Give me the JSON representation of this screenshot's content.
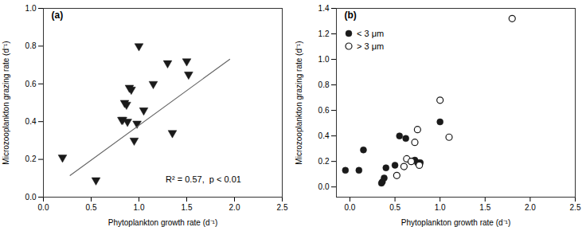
{
  "chart_data": [
    {
      "type": "scatter",
      "title": "(a)",
      "x_label": "Phytoplankton growth rate (d⁻¹)",
      "y_label": "Microzooplankton grazing rate (d⁻¹)",
      "xlim": [
        0.0,
        2.5
      ],
      "ylim": [
        0.0,
        1.0
      ],
      "xticks": [
        {
          "value": 0.0,
          "label": "0.0"
        },
        0.5,
        {
          "value": 1.0,
          "label": "1.0"
        },
        1.5,
        {
          "value": 2.0,
          "label": "2.0"
        },
        2.5
      ],
      "yticks": [
        {
          "value": 0.0,
          "label": "0.0"
        },
        0.2,
        0.4,
        0.6,
        0.8,
        {
          "value": 1.0,
          "label": "1.0"
        }
      ],
      "series": [
        {
          "type": "scatter",
          "marker": "triangle_down",
          "color": "#1a1a1a",
          "x": [
            0.2,
            0.55,
            0.82,
            0.83,
            0.85,
            0.87,
            0.88,
            0.9,
            0.92,
            0.95,
            0.98,
            1.0,
            1.05,
            1.15,
            1.3,
            1.35,
            1.5,
            1.52
          ],
          "values": [
            0.21,
            0.09,
            0.41,
            0.41,
            0.5,
            0.49,
            0.4,
            0.58,
            0.57,
            0.3,
            0.39,
            0.8,
            0.46,
            0.6,
            0.71,
            0.34,
            0.72,
            0.65
          ]
        },
        {
          "type": "line",
          "color": "#666666",
          "x": [
            0.28,
            1.95
          ],
          "values": [
            0.115,
            0.73
          ]
        }
      ],
      "annotations": [
        {
          "text": "R² = 0.57,  p < 0.01",
          "x": 1.28,
          "y": 0.08
        }
      ]
    },
    {
      "type": "scatter",
      "title": "(b)",
      "x_label": "Phytoplankton growth rate (d⁻¹)",
      "y_label": "Microzooplankton grazing rate (d⁻¹)",
      "xlim": [
        -0.15,
        2.5
      ],
      "ylim": [
        -0.08,
        1.4
      ],
      "xticks": [
        {
          "value": 0.0,
          "label": "0.0"
        },
        0.5,
        {
          "value": 1.0,
          "label": "1.0"
        },
        1.5,
        {
          "value": 2.0,
          "label": "2.0"
        },
        2.5
      ],
      "yticks": [
        {
          "value": 0.0,
          "label": "0.0"
        },
        0.2,
        0.4,
        0.6,
        0.8,
        {
          "value": 1.0,
          "label": "1.0"
        },
        1.2,
        1.4
      ],
      "legend": "upper left",
      "series": [
        {
          "name": "< 3 μm",
          "type": "scatter",
          "marker": "circle",
          "color": "#1a1a1a",
          "x": [
            -0.05,
            0.1,
            0.15,
            0.35,
            0.36,
            0.38,
            0.4,
            0.5,
            0.55,
            0.62,
            0.68,
            0.72,
            0.75,
            0.78,
            1.0
          ],
          "values": [
            0.13,
            0.13,
            0.29,
            0.03,
            0.04,
            0.07,
            0.15,
            0.17,
            0.4,
            0.38,
            0.2,
            0.21,
            0.19,
            0.19,
            0.51
          ]
        },
        {
          "name": "> 3 μm",
          "type": "scatter",
          "marker": "open_circle",
          "color": "#1a1a1a",
          "x": [
            0.52,
            0.6,
            0.63,
            0.68,
            0.72,
            0.75,
            0.77,
            1.0,
            1.1,
            1.8
          ],
          "values": [
            0.09,
            0.16,
            0.22,
            0.2,
            0.35,
            0.45,
            0.17,
            0.68,
            0.39,
            1.32
          ]
        }
      ]
    }
  ]
}
